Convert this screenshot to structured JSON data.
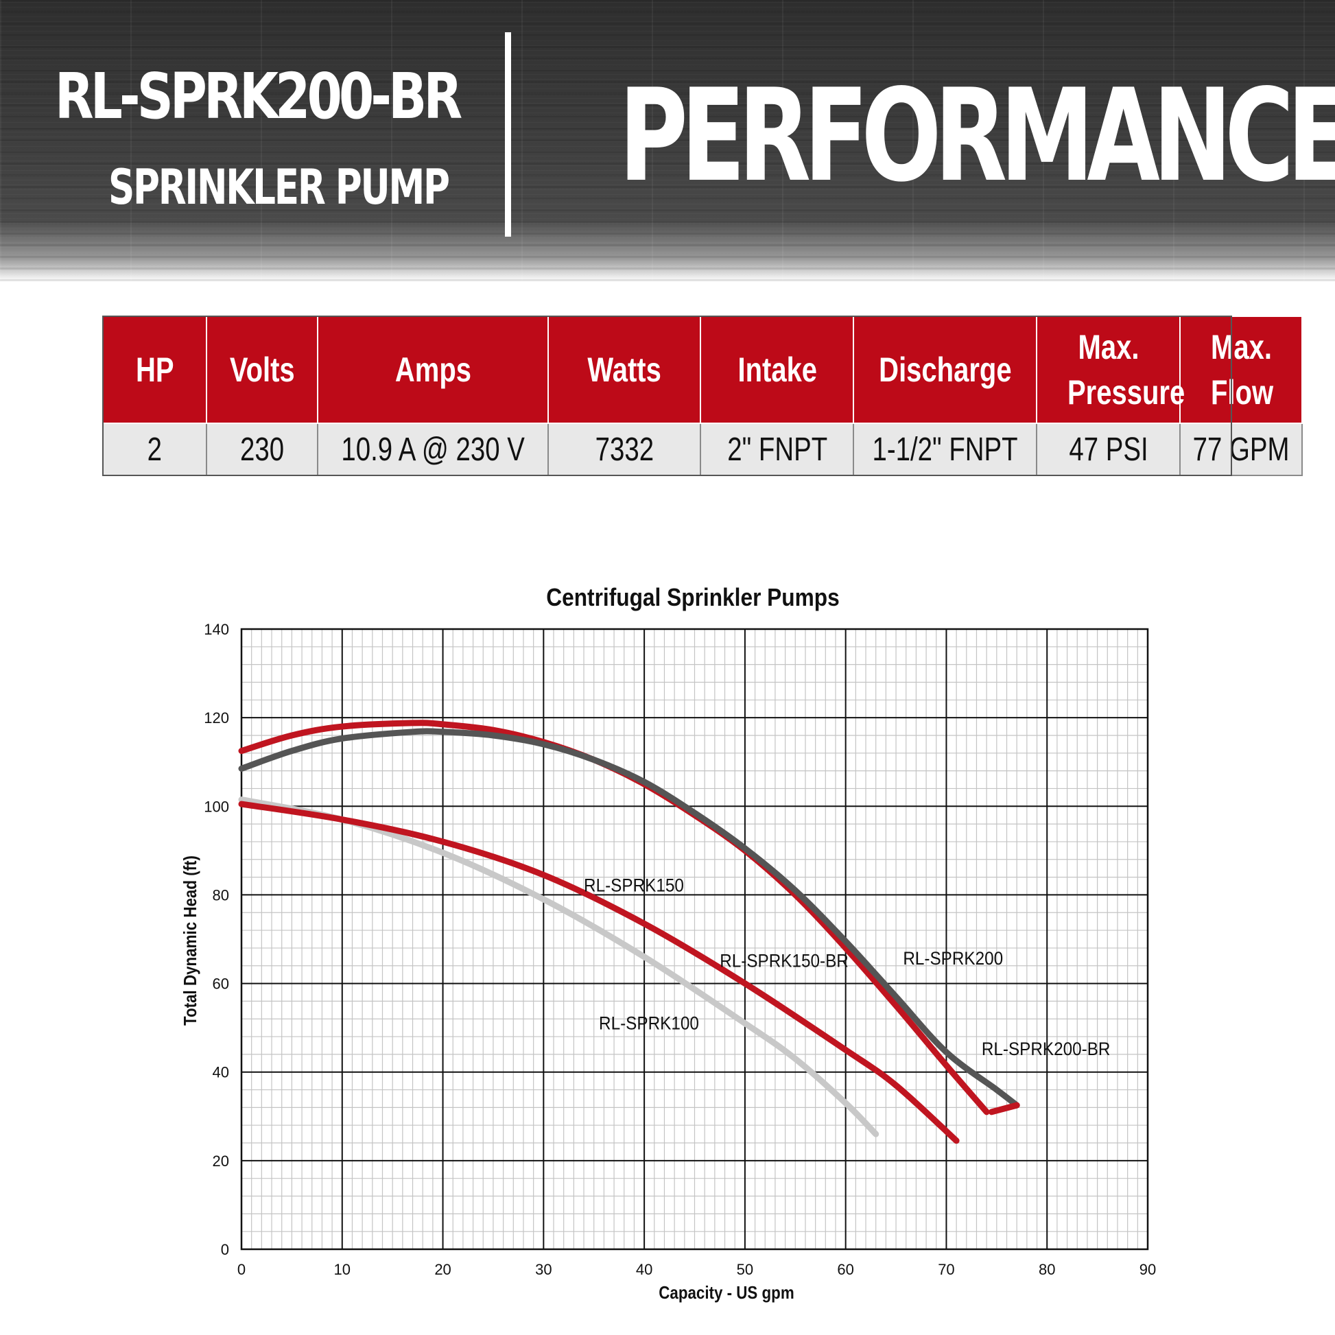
{
  "header": {
    "model": "RL-SPRK200-BR",
    "subtitle": "SPRINKLER PUMP",
    "banner": "PERFORMANCE"
  },
  "specs": {
    "headers": [
      "HP",
      "Volts",
      "Amps",
      "Watts",
      "Intake",
      "Discharge",
      "Max. Pressure",
      "Max. Flow"
    ],
    "values": [
      "2",
      "230",
      "10.9 A @ 230 V",
      "7332",
      "2\" FNPT",
      "1-1/2\" FNPT",
      "47 PSI",
      "77 GPM"
    ]
  },
  "chart_data": {
    "type": "line",
    "title": "Centrifugal Sprinkler Pumps",
    "xlabel": "Capacity - US gpm",
    "ylabel": "Total Dynamic Head (ft)",
    "xlim": [
      0,
      90
    ],
    "ylim": [
      0,
      140
    ],
    "xticks": [
      0,
      10,
      20,
      30,
      40,
      50,
      60,
      70,
      80,
      90
    ],
    "yticks": [
      0,
      20,
      40,
      60,
      80,
      100,
      120,
      140
    ],
    "grid": true,
    "legend": "none",
    "series": [
      {
        "name": "RL-SPRK100",
        "color": "#c8c8c8",
        "points": [
          [
            0,
            101.5
          ],
          [
            10,
            97
          ],
          [
            20,
            89.5
          ],
          [
            30,
            79
          ],
          [
            40,
            66
          ],
          [
            50,
            51
          ],
          [
            55,
            43
          ],
          [
            60,
            33
          ],
          [
            63,
            26
          ]
        ]
      },
      {
        "name": "RL-SPRK150-BR",
        "color": "#c01520",
        "points": [
          [
            0,
            100.5
          ],
          [
            10,
            97
          ],
          [
            20,
            92
          ],
          [
            30,
            84.5
          ],
          [
            40,
            73.5
          ],
          [
            50,
            60
          ],
          [
            60,
            45
          ],
          [
            65,
            37
          ],
          [
            71,
            24.5
          ]
        ]
      },
      {
        "name": "RL-SPRK150",
        "color": "#c01520",
        "points": [
          [
            0,
            112.5
          ],
          [
            5,
            116
          ],
          [
            10,
            118
          ],
          [
            17,
            118.8
          ],
          [
            20,
            118.5
          ],
          [
            25,
            117.2
          ],
          [
            30,
            114.5
          ],
          [
            35,
            110.5
          ],
          [
            40,
            105
          ],
          [
            45,
            98
          ],
          [
            50,
            90
          ],
          [
            55,
            80
          ],
          [
            60,
            68
          ],
          [
            65,
            55
          ],
          [
            70,
            41.5
          ],
          [
            74,
            31
          ]
        ]
      },
      {
        "name": "RL-SPRK200",
        "color": "#555555",
        "points": [
          [
            0,
            108.5
          ],
          [
            5,
            112.5
          ],
          [
            10,
            115.3
          ],
          [
            17,
            116.8
          ],
          [
            20,
            116.8
          ],
          [
            25,
            116
          ],
          [
            30,
            114
          ],
          [
            35,
            110.5
          ],
          [
            40,
            105.5
          ],
          [
            45,
            98.5
          ],
          [
            50,
            90.5
          ],
          [
            55,
            81
          ],
          [
            60,
            69.5
          ],
          [
            65,
            57
          ],
          [
            70,
            44.5
          ],
          [
            75,
            36
          ],
          [
            77,
            32.5
          ]
        ]
      },
      {
        "name": "RL-SPRK200-BR",
        "color": "#c01520",
        "points": [
          [
            74.5,
            31
          ],
          [
            77,
            32.5
          ]
        ]
      }
    ],
    "annotations": [
      {
        "text": "RL-SPRK150",
        "x": 34,
        "y": 80.8
      },
      {
        "text": "RL-SPRK150-BR",
        "x": 47.5,
        "y": 63.7
      },
      {
        "text": "RL-SPRK200",
        "x": 65.7,
        "y": 64.3
      },
      {
        "text": "RL-SPRK100",
        "x": 35.5,
        "y": 49.6
      },
      {
        "text": "RL-SPRK200-BR",
        "x": 73.5,
        "y": 43.8
      }
    ]
  }
}
